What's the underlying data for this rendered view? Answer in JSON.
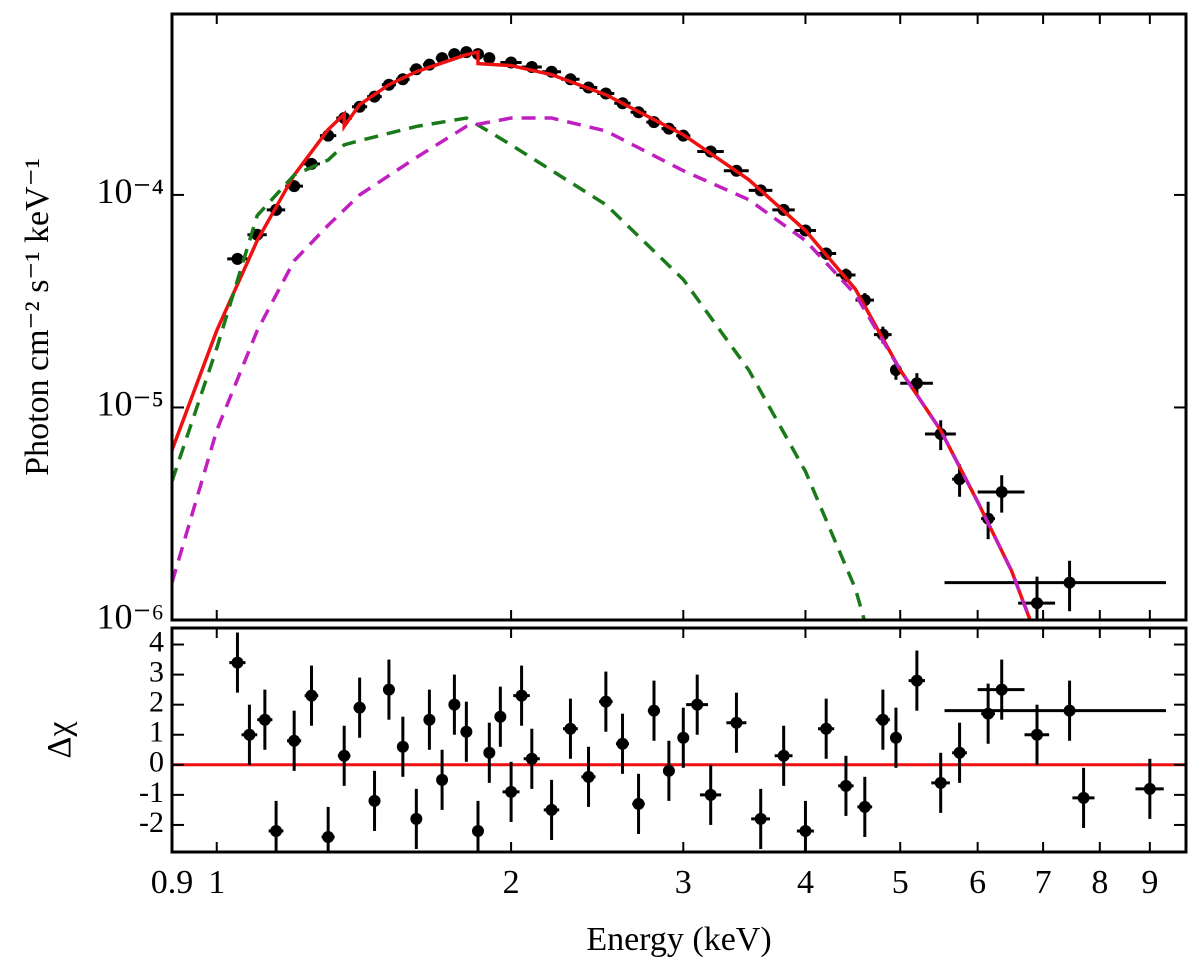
{
  "chart_data": [
    {
      "type": "errorbar",
      "ylabel": "Photon cm⁻² s⁻¹ keV⁻¹",
      "xscale": "log",
      "yscale": "log",
      "xlim": [
        0.9,
        9.8
      ],
      "ylim": [
        1e-06,
        0.00071
      ],
      "xticks": [
        0.9,
        1,
        2,
        3,
        4,
        5,
        6,
        7,
        8,
        9
      ],
      "yticks": [
        {
          "value": 1e-06,
          "label": "10⁻⁶"
        },
        {
          "value": 1e-05,
          "label": "10⁻⁵"
        },
        {
          "value": 0.0001,
          "label": "10⁻⁴"
        }
      ],
      "points": {
        "color": "#000000",
        "x": [
          1.05,
          1.1,
          1.15,
          1.2,
          1.25,
          1.3,
          1.35,
          1.4,
          1.45,
          1.5,
          1.55,
          1.6,
          1.65,
          1.7,
          1.75,
          1.8,
          1.85,
          1.9,
          2.0,
          2.1,
          2.2,
          2.3,
          2.4,
          2.5,
          2.6,
          2.7,
          2.8,
          2.9,
          3.0,
          3.2,
          3.4,
          3.6,
          3.8,
          4.0,
          4.2,
          4.4,
          4.6,
          4.8,
          4.95,
          5.2,
          5.5,
          5.75,
          6.15,
          6.35,
          6.9,
          7.45
        ],
        "xerr": [
          0.025,
          0.025,
          0.025,
          0.025,
          0.025,
          0.025,
          0.025,
          0.025,
          0.025,
          0.025,
          0.025,
          0.025,
          0.025,
          0.025,
          0.025,
          0.025,
          0.025,
          0.025,
          0.05,
          0.05,
          0.05,
          0.05,
          0.05,
          0.05,
          0.05,
          0.05,
          0.05,
          0.05,
          0.05,
          0.1,
          0.1,
          0.1,
          0.1,
          0.1,
          0.1,
          0.1,
          0.1,
          0.1,
          0.05,
          0.2,
          0.2,
          0.1,
          0.1,
          0.35,
          0.3,
          1.9
        ],
        "values": [
          5e-05,
          6.5e-05,
          8.5e-05,
          0.00011,
          0.00014,
          0.00019,
          0.00023,
          0.00026,
          0.00029,
          0.00033,
          0.00035,
          0.00039,
          0.00041,
          0.00044,
          0.00046,
          0.00047,
          0.00046,
          0.00044,
          0.00042,
          0.0004,
          0.00038,
          0.00035,
          0.00032,
          0.0003,
          0.00027,
          0.000245,
          0.00022,
          0.000205,
          0.00019,
          0.00016,
          0.00013,
          0.000105,
          8.5e-05,
          6.8e-05,
          5.3e-05,
          4.2e-05,
          3.2e-05,
          2.2e-05,
          1.5e-05,
          1.3e-05,
          7.5e-06,
          4.6e-06,
          3e-06,
          4e-06,
          1.2e-06,
          1.5e-06
        ],
        "yerr": [
          3e-06,
          4e-06,
          5e-06,
          6e-06,
          7e-06,
          8e-06,
          9e-06,
          1e-05,
          1e-05,
          1.1e-05,
          1.1e-05,
          1.2e-05,
          1.2e-05,
          1.3e-05,
          1.3e-05,
          1.3e-05,
          1.3e-05,
          1.3e-05,
          1.2e-05,
          1.2e-05,
          1.1e-05,
          1.1e-05,
          1e-05,
          1e-05,
          9e-06,
          9e-06,
          8e-06,
          8e-06,
          7e-06,
          6e-06,
          5e-06,
          5e-06,
          4e-06,
          4e-06,
          3.5e-06,
          3e-06,
          2.5e-06,
          2e-06,
          1.5e-06,
          1.5e-06,
          1.2e-06,
          8e-07,
          6e-07,
          8e-07,
          4e-07,
          4e-07
        ]
      },
      "series": [
        {
          "color": "#ee1111",
          "style": "solid",
          "x": [
            0.9,
            1.0,
            1.1,
            1.2,
            1.3,
            1.35,
            1.35,
            1.4,
            1.5,
            1.6,
            1.8,
            1.85,
            1.85,
            2.0,
            2.2,
            2.5,
            3.0,
            3.5,
            4.0,
            4.5,
            5.0,
            5.5,
            6.0,
            6.5,
            6.8
          ],
          "values": [
            6.3e-06,
            2.3e-05,
            6.1e-05,
            0.000124,
            0.000203,
            0.00024,
            0.00021,
            0.000266,
            0.00033,
            0.00038,
            0.000457,
            0.00047,
            0.000415,
            0.000406,
            0.000368,
            0.000296,
            0.000192,
            0.000118,
            6.8e-05,
            3.6e-05,
            1.5e-05,
            7.8e-06,
            3.6e-06,
            1.7e-06,
            9.8e-07
          ]
        },
        {
          "color": "#1a7a1a",
          "style": "dashed",
          "x": [
            0.9,
            1.0,
            1.1,
            1.2,
            1.3,
            1.35,
            1.4,
            1.6,
            1.8,
            2.0,
            2.5,
            3.0,
            3.5,
            4.0,
            4.5,
            4.6
          ],
          "values": [
            4.5e-06,
            1.9e-05,
            8e-05,
            0.000124,
            0.000146,
            0.000172,
            0.00018,
            0.00021,
            0.00023,
            0.000172,
            9e-05,
            4e-05,
            1.5e-05,
            5e-06,
            1.4e-06,
            9.8e-07
          ]
        },
        {
          "color": "#c020c0",
          "style": "dashed",
          "x": [
            0.9,
            1.0,
            1.1,
            1.2,
            1.3,
            1.4,
            1.6,
            1.8,
            2.0,
            2.2,
            2.5,
            3.0,
            3.5,
            4.0,
            4.5,
            5.0,
            5.5,
            6.0,
            6.5,
            6.8
          ],
          "values": [
            1.5e-06,
            7.8e-06,
            2.3e-05,
            4.9e-05,
            7.2e-05,
            0.0001,
            0.00015,
            0.00021,
            0.00023,
            0.00023,
            0.0002,
            0.00013,
            9.5e-05,
            6.1e-05,
            3.4e-05,
            1.5e-05,
            7.8e-06,
            3.6e-06,
            1.7e-06,
            9.8e-07
          ]
        }
      ]
    },
    {
      "type": "errorbar",
      "xlabel": "Energy (keV)",
      "ylabel": "Δχ",
      "xscale": "log",
      "xlim": [
        0.9,
        9.8
      ],
      "ylim": [
        -2.9,
        4.55
      ],
      "xticks": [
        0.9,
        1,
        2,
        3,
        4,
        5,
        6,
        7,
        8,
        9
      ],
      "yticks": [
        -2,
        -1,
        0,
        1,
        2,
        3,
        4
      ],
      "points": {
        "color": "#000000",
        "x": [
          1.05,
          1.08,
          1.12,
          1.15,
          1.2,
          1.25,
          1.3,
          1.35,
          1.4,
          1.45,
          1.5,
          1.55,
          1.6,
          1.65,
          1.7,
          1.75,
          1.8,
          1.85,
          1.9,
          1.95,
          2.0,
          2.05,
          2.1,
          2.2,
          2.3,
          2.4,
          2.5,
          2.6,
          2.7,
          2.8,
          2.9,
          3.0,
          3.1,
          3.2,
          3.4,
          3.6,
          3.8,
          4.0,
          4.2,
          4.4,
          4.6,
          4.8,
          4.95,
          5.2,
          5.5,
          5.75,
          6.15,
          6.35,
          6.9,
          7.45,
          7.7,
          9.0
        ],
        "xerr": [
          0.02,
          0.02,
          0.02,
          0.02,
          0.02,
          0.02,
          0.02,
          0.02,
          0.02,
          0.02,
          0.02,
          0.02,
          0.02,
          0.02,
          0.02,
          0.02,
          0.02,
          0.02,
          0.02,
          0.02,
          0.04,
          0.04,
          0.04,
          0.04,
          0.04,
          0.04,
          0.04,
          0.04,
          0.04,
          0.04,
          0.04,
          0.04,
          0.08,
          0.08,
          0.08,
          0.08,
          0.08,
          0.08,
          0.08,
          0.08,
          0.08,
          0.08,
          0.05,
          0.1,
          0.12,
          0.1,
          0.1,
          0.35,
          0.2,
          1.9,
          0.2,
          0.3
        ],
        "values": [
          3.4,
          1.0,
          1.5,
          -2.2,
          0.8,
          2.3,
          -2.4,
          0.3,
          1.9,
          -1.2,
          2.5,
          0.6,
          -1.8,
          1.5,
          -0.5,
          2.0,
          1.1,
          -2.2,
          0.4,
          1.6,
          -0.9,
          2.3,
          0.2,
          -1.5,
          1.2,
          -0.4,
          2.1,
          0.7,
          -1.3,
          1.8,
          -0.2,
          0.9,
          2.0,
          -1.0,
          1.4,
          -1.8,
          0.3,
          -2.2,
          1.2,
          -0.7,
          -1.4,
          1.5,
          0.9,
          2.8,
          -0.6,
          0.4,
          1.7,
          2.5,
          1.0,
          1.8,
          -1.1,
          -0.8
        ],
        "yerr": [
          1,
          1,
          1,
          1,
          1,
          1,
          1,
          1,
          1,
          1,
          1,
          1,
          1,
          1,
          1,
          1,
          1,
          1,
          1,
          1,
          1,
          1,
          1,
          1,
          1,
          1,
          1,
          1,
          1,
          1,
          1,
          1,
          1,
          1,
          1,
          1,
          1,
          1,
          1,
          1,
          1,
          1,
          1,
          1,
          1,
          1,
          1,
          1,
          1,
          1,
          1,
          1
        ]
      },
      "reference_line": {
        "value": 0,
        "color": "#ee1111"
      }
    }
  ]
}
